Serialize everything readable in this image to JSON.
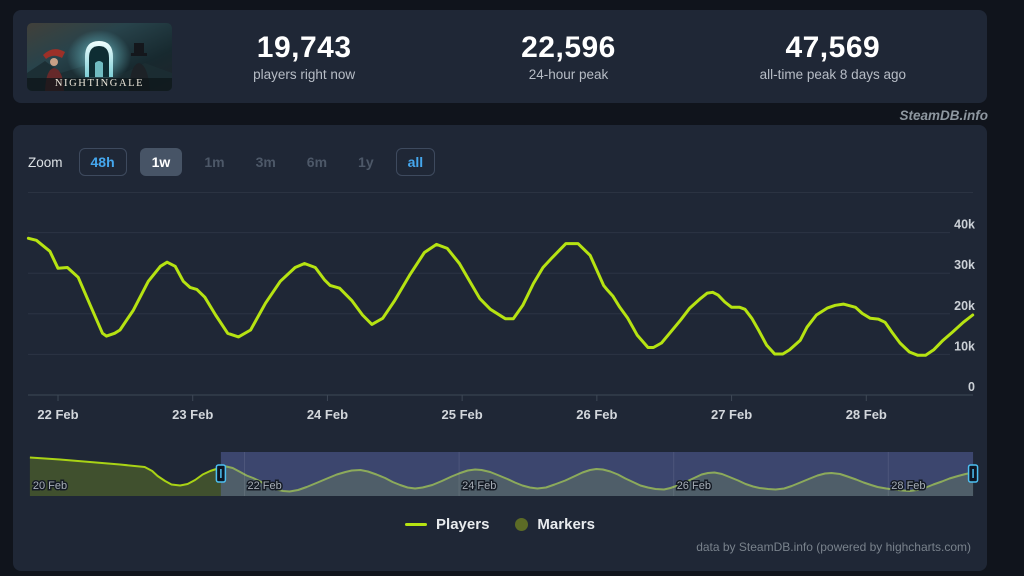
{
  "header": {
    "game_title": "Nightingale",
    "stats": [
      {
        "value": "19,743",
        "label": "players right now"
      },
      {
        "value": "22,596",
        "label": "24-hour peak"
      },
      {
        "value": "47,569",
        "label": "all-time peak 8 days ago"
      }
    ]
  },
  "watermark": "SteamDB.info",
  "toolbar": {
    "zoom_label": "Zoom",
    "buttons": [
      {
        "label": "48h",
        "state": "enabled"
      },
      {
        "label": "1w",
        "state": "selected"
      },
      {
        "label": "1m",
        "state": "disabled"
      },
      {
        "label": "3m",
        "state": "disabled"
      },
      {
        "label": "6m",
        "state": "disabled"
      },
      {
        "label": "1y",
        "state": "disabled"
      },
      {
        "label": "all",
        "state": "enabled"
      }
    ]
  },
  "chart_data": {
    "type": "line",
    "title": "Nightingale concurrent players (1 week view)",
    "x_unit": "days since 22 Feb 00:00",
    "y_unit": "thousands of players",
    "x_axis_ticks": [
      "22 Feb",
      "23 Feb",
      "24 Feb",
      "25 Feb",
      "26 Feb",
      "27 Feb",
      "28 Feb"
    ],
    "y_tick_values": [
      0,
      10,
      20,
      30,
      40
    ],
    "y_axis_ticks": [
      "0",
      "10k",
      "20k",
      "30k",
      "40k"
    ],
    "ylim": [
      0,
      44
    ],
    "grid": true,
    "legend_position": "bottom",
    "series_name": "Players",
    "players_series": [
      [
        -0.22,
        38.6
      ],
      [
        -0.16,
        38.1
      ],
      [
        -0.06,
        35.4
      ],
      [
        0,
        31.2
      ],
      [
        0.07,
        31.4
      ],
      [
        0.15,
        29.0
      ],
      [
        0.24,
        22.1
      ],
      [
        0.33,
        15.2
      ],
      [
        0.36,
        14.5
      ],
      [
        0.42,
        15.2
      ],
      [
        0.46,
        16.0
      ],
      [
        0.56,
        20.9
      ],
      [
        0.67,
        28.0
      ],
      [
        0.76,
        31.7
      ],
      [
        0.81,
        32.7
      ],
      [
        0.87,
        31.7
      ],
      [
        0.93,
        28.0
      ],
      [
        0.98,
        26.5
      ],
      [
        1.03,
        26.0
      ],
      [
        1.09,
        24.1
      ],
      [
        1.17,
        19.7
      ],
      [
        1.26,
        15.2
      ],
      [
        1.34,
        14.3
      ],
      [
        1.43,
        16.0
      ],
      [
        1.54,
        22.6
      ],
      [
        1.65,
        28.0
      ],
      [
        1.76,
        31.4
      ],
      [
        1.83,
        32.4
      ],
      [
        1.91,
        31.4
      ],
      [
        1.98,
        28.3
      ],
      [
        2.02,
        27.0
      ],
      [
        2.09,
        26.3
      ],
      [
        2.18,
        23.3
      ],
      [
        2.26,
        19.7
      ],
      [
        2.33,
        17.4
      ],
      [
        2.41,
        18.9
      ],
      [
        2.5,
        23.3
      ],
      [
        2.61,
        29.5
      ],
      [
        2.72,
        35.1
      ],
      [
        2.81,
        37.1
      ],
      [
        2.89,
        36.1
      ],
      [
        2.98,
        32.4
      ],
      [
        3.06,
        27.8
      ],
      [
        3.13,
        23.8
      ],
      [
        3.21,
        21.1
      ],
      [
        3.32,
        18.8
      ],
      [
        3.38,
        18.8
      ],
      [
        3.45,
        22.1
      ],
      [
        3.53,
        27.5
      ],
      [
        3.6,
        31.4
      ],
      [
        3.67,
        33.9
      ],
      [
        3.77,
        37.3
      ],
      [
        3.86,
        37.3
      ],
      [
        3.95,
        34.4
      ],
      [
        4.0,
        30.7
      ],
      [
        4.05,
        27.0
      ],
      [
        4.08,
        25.8
      ],
      [
        4.12,
        24.3
      ],
      [
        4.17,
        21.6
      ],
      [
        4.23,
        18.9
      ],
      [
        4.3,
        14.7
      ],
      [
        4.38,
        11.7
      ],
      [
        4.42,
        11.7
      ],
      [
        4.48,
        12.8
      ],
      [
        4.54,
        15.2
      ],
      [
        4.62,
        18.4
      ],
      [
        4.69,
        21.4
      ],
      [
        4.77,
        23.8
      ],
      [
        4.82,
        25.1
      ],
      [
        4.86,
        25.3
      ],
      [
        4.9,
        24.6
      ],
      [
        4.95,
        22.9
      ],
      [
        5.0,
        21.6
      ],
      [
        5.06,
        21.6
      ],
      [
        5.1,
        21.1
      ],
      [
        5.15,
        18.9
      ],
      [
        5.2,
        16.0
      ],
      [
        5.26,
        12.3
      ],
      [
        5.32,
        10.1
      ],
      [
        5.38,
        10.1
      ],
      [
        5.43,
        11.1
      ],
      [
        5.51,
        13.5
      ],
      [
        5.56,
        16.7
      ],
      [
        5.63,
        19.7
      ],
      [
        5.71,
        21.4
      ],
      [
        5.77,
        22.1
      ],
      [
        5.83,
        22.4
      ],
      [
        5.92,
        21.6
      ],
      [
        5.97,
        20.1
      ],
      [
        6.03,
        18.9
      ],
      [
        6.09,
        18.7
      ],
      [
        6.14,
        17.9
      ],
      [
        6.19,
        15.5
      ],
      [
        6.25,
        12.8
      ],
      [
        6.32,
        10.6
      ],
      [
        6.38,
        9.8
      ],
      [
        6.44,
        9.8
      ],
      [
        6.5,
        11.1
      ],
      [
        6.57,
        13.5
      ],
      [
        6.64,
        15.5
      ],
      [
        6.72,
        17.9
      ],
      [
        6.79,
        19.7
      ]
    ],
    "navigator": {
      "x_axis_ticks": [
        "20 Feb",
        "22 Feb",
        "24 Feb",
        "26 Feb",
        "28 Feb"
      ],
      "tick_t_values": [
        -2,
        0,
        2,
        4,
        6
      ],
      "selected_range_days": [
        -0.22,
        6.79
      ],
      "series": [
        [
          -2.0,
          42.5
        ],
        [
          -1.72,
          40.3
        ],
        [
          -1.44,
          37.6
        ],
        [
          -1.16,
          34.8
        ],
        [
          -0.93,
          32.0
        ],
        [
          -0.86,
          27.6
        ],
        [
          -0.81,
          22.1
        ],
        [
          -0.74,
          16.6
        ],
        [
          -0.68,
          12.7
        ],
        [
          -0.6,
          11.6
        ],
        [
          -0.53,
          13.3
        ],
        [
          -0.46,
          17.7
        ],
        [
          -0.39,
          23.8
        ],
        [
          -0.32,
          27.6
        ],
        [
          -0.25,
          30.4
        ],
        [
          -0.17,
          32.6
        ],
        [
          -0.11,
          30.9
        ],
        [
          -0.04,
          26.5
        ],
        [
          0.02,
          22.7
        ],
        [
          0.08,
          19.9
        ],
        [
          0.14,
          16.6
        ],
        [
          0.22,
          11.0
        ],
        [
          0.28,
          7.7
        ],
        [
          0.36,
          5.5
        ],
        [
          0.42,
          5.0
        ],
        [
          0.5,
          6.6
        ],
        [
          0.58,
          9.9
        ],
        [
          0.67,
          14.4
        ],
        [
          0.77,
          19.3
        ],
        [
          0.86,
          23.8
        ],
        [
          0.94,
          26.5
        ],
        [
          1.0,
          28.2
        ],
        [
          1.08,
          28.7
        ],
        [
          1.15,
          27.1
        ],
        [
          1.23,
          23.8
        ],
        [
          1.31,
          19.9
        ],
        [
          1.38,
          15.5
        ],
        [
          1.45,
          12.2
        ],
        [
          1.52,
          9.4
        ],
        [
          1.59,
          8.3
        ],
        [
          1.66,
          9.4
        ],
        [
          1.75,
          12.2
        ],
        [
          1.84,
          16.6
        ],
        [
          1.93,
          21.5
        ],
        [
          2.01,
          25.4
        ],
        [
          2.08,
          28.2
        ],
        [
          2.15,
          29.3
        ],
        [
          2.21,
          28.7
        ],
        [
          2.29,
          26.5
        ],
        [
          2.36,
          23.2
        ],
        [
          2.45,
          18.8
        ],
        [
          2.52,
          14.9
        ],
        [
          2.59,
          11.6
        ],
        [
          2.66,
          9.4
        ],
        [
          2.73,
          8.3
        ],
        [
          2.81,
          9.4
        ],
        [
          2.89,
          12.7
        ],
        [
          2.99,
          17.1
        ],
        [
          3.08,
          22.1
        ],
        [
          3.15,
          26.0
        ],
        [
          3.22,
          28.7
        ],
        [
          3.28,
          29.8
        ],
        [
          3.34,
          29.3
        ],
        [
          3.41,
          27.1
        ],
        [
          3.48,
          23.8
        ],
        [
          3.55,
          19.3
        ],
        [
          3.63,
          14.9
        ],
        [
          3.69,
          11.6
        ],
        [
          3.76,
          9.4
        ],
        [
          3.83,
          7.7
        ],
        [
          3.91,
          7.2
        ],
        [
          3.97,
          8.8
        ],
        [
          4.05,
          12.2
        ],
        [
          4.12,
          16.0
        ],
        [
          4.2,
          20.4
        ],
        [
          4.26,
          23.8
        ],
        [
          4.32,
          25.4
        ],
        [
          4.38,
          26.0
        ],
        [
          4.45,
          24.3
        ],
        [
          4.52,
          21.0
        ],
        [
          4.6,
          17.1
        ],
        [
          4.67,
          13.3
        ],
        [
          4.74,
          10.5
        ],
        [
          4.8,
          8.8
        ],
        [
          4.88,
          7.7
        ],
        [
          4.95,
          7.2
        ],
        [
          5.03,
          8.3
        ],
        [
          5.1,
          11.0
        ],
        [
          5.18,
          14.9
        ],
        [
          5.27,
          19.3
        ],
        [
          5.34,
          22.7
        ],
        [
          5.41,
          24.9
        ],
        [
          5.47,
          25.4
        ],
        [
          5.55,
          24.3
        ],
        [
          5.62,
          21.5
        ],
        [
          5.7,
          18.2
        ],
        [
          5.77,
          14.9
        ],
        [
          5.84,
          12.2
        ],
        [
          5.9,
          9.9
        ],
        [
          5.98,
          8.3
        ],
        [
          6.05,
          7.2
        ],
        [
          6.13,
          6.1
        ],
        [
          6.2,
          5.5
        ],
        [
          6.27,
          6.6
        ],
        [
          6.35,
          9.4
        ],
        [
          6.42,
          12.7
        ],
        [
          6.5,
          16.0
        ],
        [
          6.57,
          19.3
        ],
        [
          6.65,
          22.1
        ],
        [
          6.72,
          24.3
        ],
        [
          6.79,
          26.0
        ]
      ]
    }
  },
  "legend": [
    {
      "label": "Players",
      "marker": "line",
      "color": "#b6e312"
    },
    {
      "label": "Markers",
      "marker": "circle",
      "color": "#5c6b26"
    }
  ],
  "credits": "data by SteamDB.info (powered by highcharts.com)",
  "colors": {
    "page_bg": "#10141c",
    "panel_bg": "#1f2736",
    "accent_line": "#b6e312",
    "nav_line": "#a9d315",
    "nav_area_fill": "rgba(182,227,18,0.22)",
    "nav_mask": "rgba(99,114,189,0.42)",
    "grid_line": "#2c3444",
    "axis_line": "#3e4856",
    "axis_label": "#cbd0d6",
    "button_blue": "#45a7ee",
    "handle_border": "#4dc0f2",
    "stat_value": "#ffffff"
  }
}
